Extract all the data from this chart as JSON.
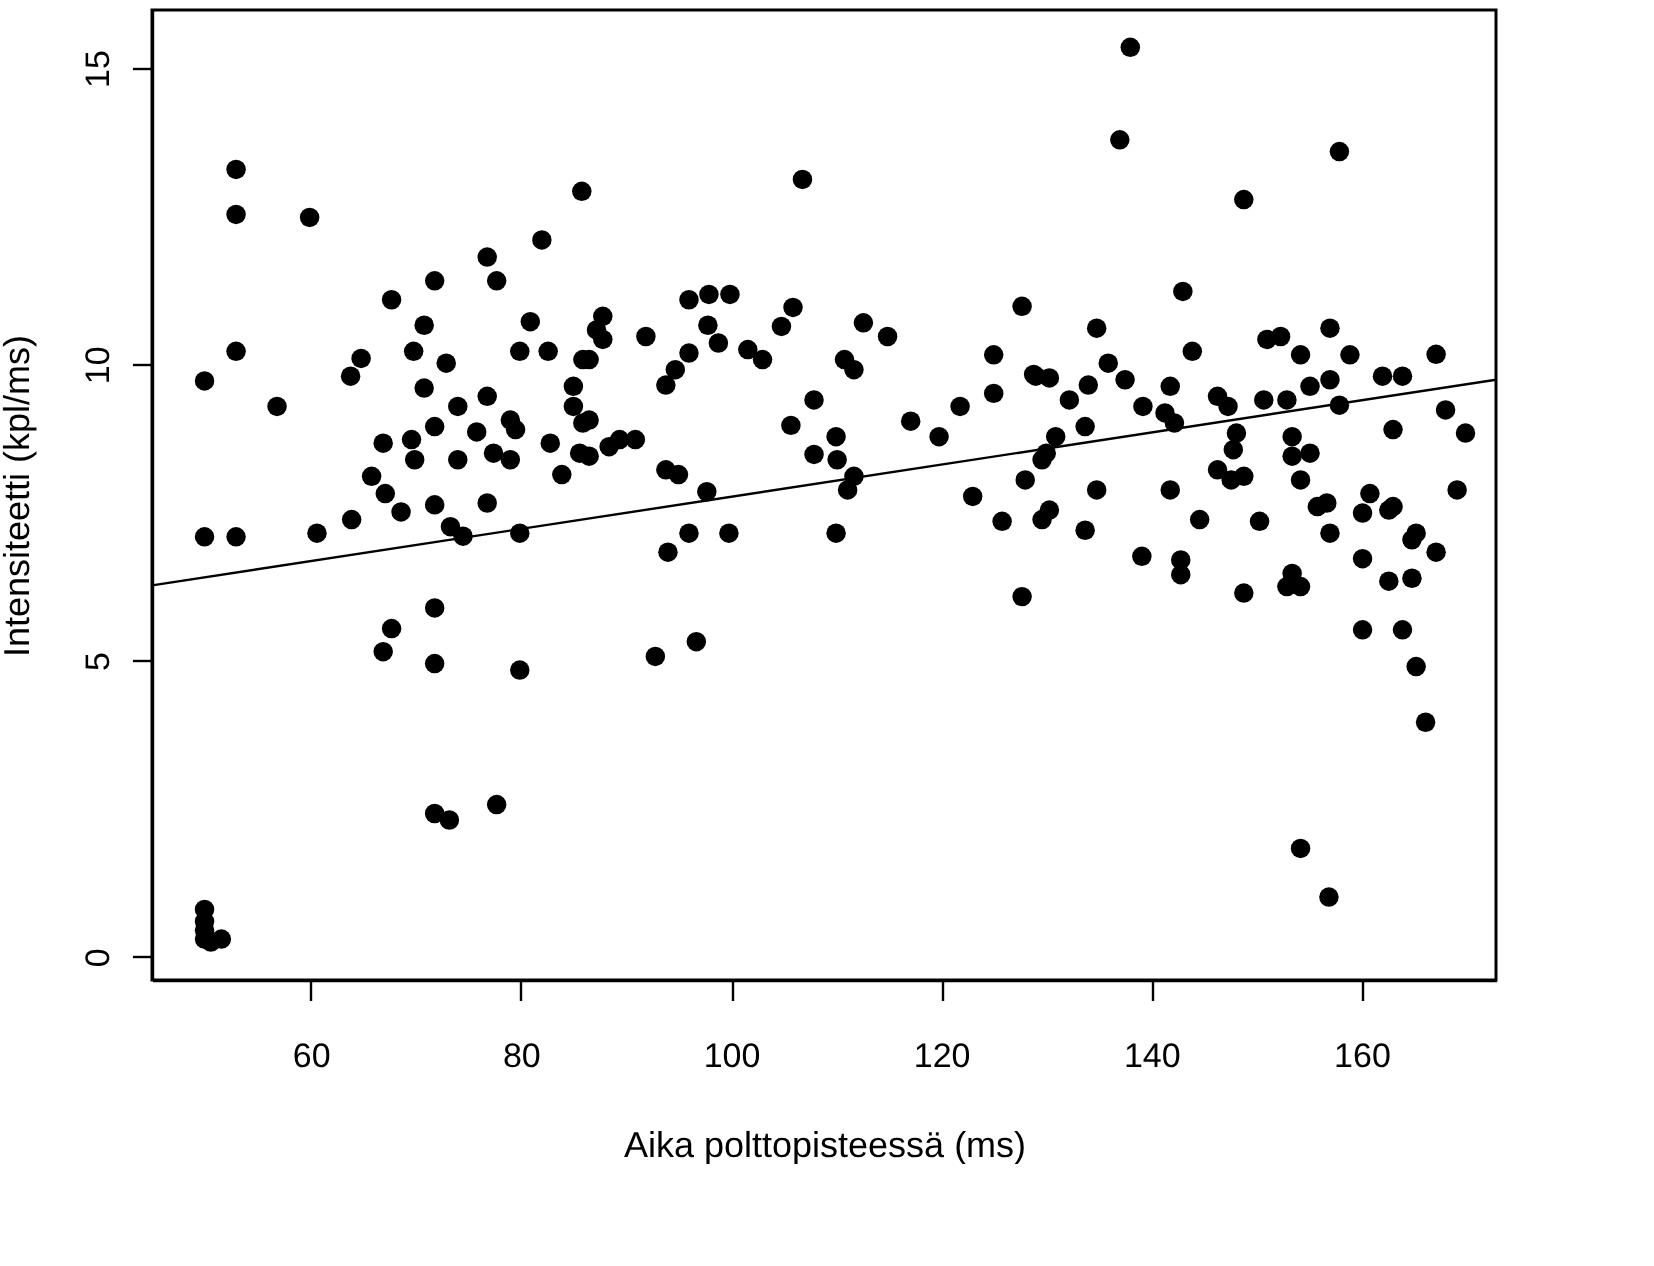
{
  "chart_data": {
    "type": "scatter",
    "xlabel": "Aika polttopisteessä (ms)",
    "ylabel": "Intensiteetti (kpl/ms)",
    "xlim": [
      44.9,
      172.8
    ],
    "ylim": [
      -0.39,
      15.98
    ],
    "xticks": [
      60,
      80,
      100,
      120,
      140,
      160
    ],
    "yticks": [
      0,
      5,
      10,
      15
    ],
    "grid": false,
    "series": [
      {
        "color": "#000000",
        "marker": "circle",
        "x": [
          52.9,
          52.9,
          59.9,
          85.8,
          82.0,
          76.8,
          77.7,
          71.8,
          67.7,
          70.8,
          80.9,
          87.2,
          52.9,
          49.9,
          56.8,
          64.8,
          63.8,
          69.8,
          72.9,
          79.9,
          82.6,
          70.8,
          76.8,
          74.0,
          85.9,
          85.0,
          85.0,
          85.9,
          79.0,
          75.8,
          71.8,
          69.6,
          66.9,
          79.5,
          82.8,
          85.6,
          88.4,
          74.0,
          69.9,
          77.4,
          79.0,
          83.9,
          65.8,
          67.1,
          68.6,
          71.8,
          76.8,
          73.3,
          63.9,
          60.6,
          49.9,
          52.9,
          79.9,
          74.5,
          71.8,
          67.7,
          66.9,
          71.8,
          79.9,
          71.8,
          73.2,
          77.7,
          49.9,
          49.9,
          49.9,
          49.9,
          50.5,
          51.5,
          106.8,
          96.0,
          97.9,
          99.9,
          87.8,
          91.9,
          97.8,
          98.8,
          101.6,
          103.0,
          105.9,
          104.8,
          96.0,
          94.7,
          93.8,
          87.8,
          86.5,
          112.6,
          114.9,
          110.8,
          111.7,
          127.7,
          125.0,
          125.0,
          128.8,
          121.8,
          107.9,
          105.7,
          110.0,
          107.9,
          110.1,
          117.1,
          119.8,
          89.4,
          90.9,
          86.5,
          86.5,
          93.8,
          95.0,
          97.7,
          111.7,
          111.1,
          123.0,
          128.0,
          125.8,
          129.6,
          129.6,
          96.0,
          99.8,
          110.0,
          94.0,
          92.8,
          96.7,
          127.7,
          138.0,
          137.0,
          157.9,
          148.8,
          143.0,
          134.8,
          143.9,
          151.0,
          152.3,
          154.2,
          157.0,
          158.9,
          167.1,
          129.0,
          130.3,
          135.9,
          137.5,
          134.0,
          132.2,
          141.8,
          139.2,
          141.3,
          142.2,
          146.3,
          147.3,
          150.7,
          152.9,
          155.1,
          157.0,
          157.9,
          162.0,
          163.9,
          168.0,
          169.9,
          163.0,
          148.1,
          147.8,
          153.4,
          153.4,
          155.1,
          133.7,
          130.9,
          130.0,
          134.8,
          141.8,
          146.3,
          147.6,
          148.8,
          154.2,
          156.7,
          160.8,
          163.0,
          169.1,
          130.3,
          133.7,
          144.6,
          150.3,
          160.1,
          165.2,
          139.1,
          142.8,
          142.8,
          148.8,
          153.4,
          154.2,
          152.9,
          155.8,
          157.0,
          160.1,
          162.6,
          164.8,
          167.1,
          162.6,
          164.8,
          160.1,
          163.9,
          165.2,
          166.1,
          154.2,
          156.9
        ],
        "values": [
          13.29,
          12.53,
          12.48,
          12.92,
          12.1,
          11.81,
          11.41,
          11.41,
          11.09,
          10.66,
          10.72,
          10.58,
          10.22,
          9.72,
          9.29,
          10.1,
          9.8,
          10.22,
          10.02,
          10.22,
          10.22,
          9.6,
          9.46,
          9.29,
          10.08,
          9.63,
          9.29,
          9.01,
          9.06,
          8.86,
          8.95,
          8.73,
          8.67,
          8.9,
          8.67,
          8.5,
          8.61,
          8.39,
          8.39,
          8.5,
          8.39,
          8.14,
          8.11,
          7.82,
          7.51,
          7.63,
          7.66,
          7.26,
          7.38,
          7.15,
          7.09,
          7.09,
          7.15,
          7.1,
          5.89,
          5.54,
          5.15,
          4.95,
          4.84,
          2.42,
          2.31,
          2.57,
          0.8,
          0.6,
          0.45,
          0.3,
          0.25,
          0.3,
          13.12,
          11.09,
          11.18,
          11.18,
          10.81,
          10.47,
          10.66,
          10.36,
          10.25,
          10.08,
          10.96,
          10.64,
          10.19,
          9.91,
          9.65,
          10.42,
          10.08,
          10.7,
          10.47,
          10.08,
          9.91,
          10.98,
          10.16,
          9.51,
          9.83,
          9.29,
          9.4,
          8.97,
          8.78,
          8.48,
          8.39,
          9.04,
          8.78,
          8.73,
          8.73,
          9.06,
          8.45,
          8.22,
          8.14,
          7.85,
          8.11,
          7.88,
          7.77,
          8.05,
          7.35,
          8.39,
          7.38,
          7.15,
          7.15,
          7.15,
          6.83,
          5.07,
          5.32,
          6.08,
          15.35,
          13.79,
          13.59,
          12.78,
          11.23,
          10.61,
          10.22,
          10.42,
          10.47,
          10.16,
          10.61,
          10.16,
          10.17,
          9.8,
          9.77,
          10.02,
          9.74,
          9.65,
          9.4,
          9.63,
          9.29,
          9.18,
          9.01,
          9.46,
          9.29,
          9.4,
          9.4,
          9.63,
          9.74,
          9.31,
          9.8,
          9.8,
          9.23,
          8.84,
          8.9,
          8.84,
          8.56,
          8.78,
          8.45,
          8.5,
          8.95,
          8.78,
          8.5,
          7.88,
          7.88,
          8.22,
          8.05,
          8.11,
          8.05,
          7.66,
          7.82,
          7.6,
          7.88,
          7.54,
          7.2,
          7.38,
          7.35,
          7.49,
          7.15,
          6.76,
          6.7,
          6.45,
          6.14,
          6.47,
          6.25,
          6.25,
          7.6,
          7.15,
          6.72,
          7.54,
          7.04,
          6.83,
          6.34,
          6.39,
          5.52,
          5.52,
          4.9,
          3.96,
          1.83,
          1.01
        ]
      },
      {
        "type": "line",
        "color": "#000000",
        "x": [
          44.9,
          172.8
        ],
        "values": [
          6.27,
          9.74
        ]
      }
    ]
  }
}
